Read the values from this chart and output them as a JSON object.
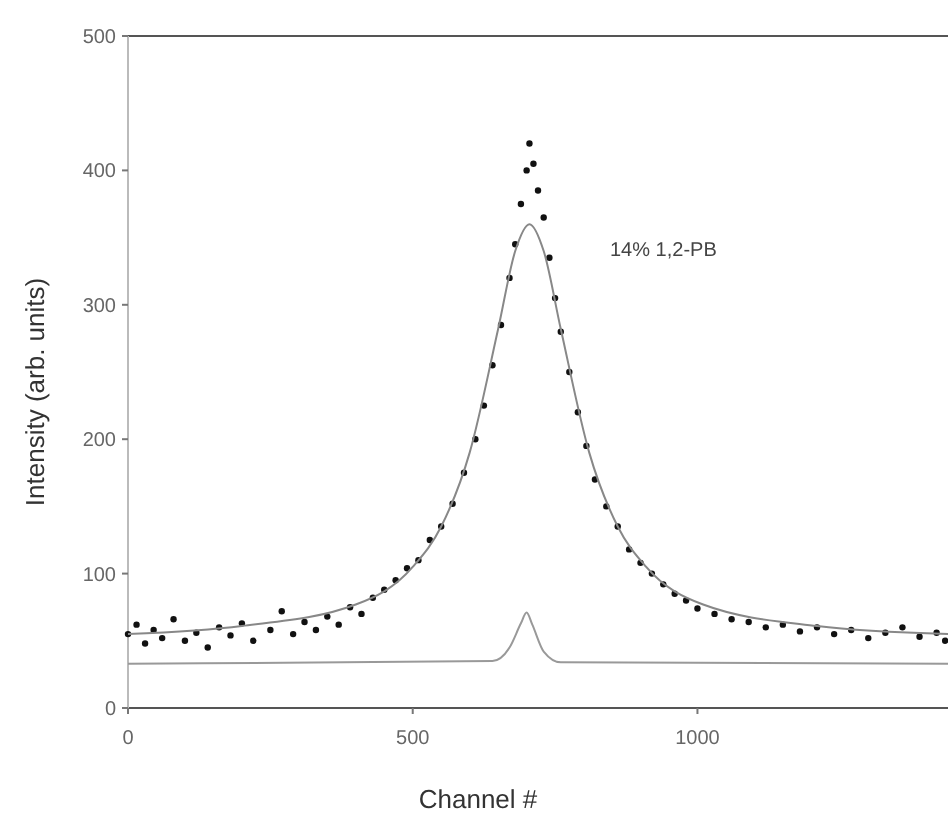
{
  "chart_data": {
    "type": "scatter",
    "xlabel": "Channel #",
    "ylabel": "Intensity (arb. units)",
    "annotations": [
      "14% 1,2-PB"
    ],
    "xlim": [
      0,
      1440
    ],
    "ylim": [
      0,
      500
    ],
    "xticks": [
      0,
      500,
      1000
    ],
    "yticks": [
      0,
      100,
      200,
      300,
      400,
      500
    ],
    "grid": false,
    "marker": "circle",
    "series": [
      {
        "color": "#111111",
        "x": [
          0,
          15,
          30,
          45,
          60,
          80,
          100,
          120,
          140,
          160,
          180,
          200,
          220,
          250,
          270,
          290,
          310,
          330,
          350,
          370,
          390,
          410,
          430,
          450,
          470,
          490,
          510,
          530,
          550,
          570,
          590,
          610,
          625,
          640,
          655,
          670,
          680,
          690,
          700,
          705,
          712,
          720,
          730,
          740,
          750,
          760,
          775,
          790,
          805,
          820,
          840,
          860,
          880,
          900,
          920,
          940,
          960,
          980,
          1000,
          1030,
          1060,
          1090,
          1120,
          1150,
          1180,
          1210,
          1240,
          1270,
          1300,
          1330,
          1360,
          1390,
          1420,
          1435
        ],
        "values": [
          55,
          62,
          48,
          58,
          52,
          66,
          50,
          56,
          45,
          60,
          54,
          63,
          50,
          58,
          72,
          55,
          64,
          58,
          68,
          62,
          75,
          70,
          82,
          88,
          95,
          104,
          110,
          125,
          135,
          152,
          175,
          200,
          225,
          255,
          285,
          320,
          345,
          375,
          400,
          420,
          405,
          385,
          365,
          335,
          305,
          280,
          250,
          220,
          195,
          170,
          150,
          135,
          118,
          108,
          100,
          92,
          85,
          80,
          74,
          70,
          66,
          64,
          60,
          62,
          57,
          60,
          55,
          58,
          52,
          56,
          60,
          53,
          56,
          50
        ]
      },
      {
        "type": "line",
        "color": "#888888",
        "marker": "none",
        "x": [
          0,
          200,
          400,
          500,
          550,
          600,
          650,
          680,
          705,
          730,
          760,
          810,
          860,
          910,
          1010,
          1210,
          1440
        ],
        "values": [
          55,
          61,
          77,
          105,
          135,
          190,
          282,
          340,
          360,
          340,
          282,
          190,
          135,
          105,
          77,
          61,
          55
        ]
      },
      {
        "type": "line",
        "color": "#999999",
        "marker": "none",
        "x": [
          0,
          640,
          670,
          690,
          700,
          710,
          730,
          760,
          1440
        ],
        "values": [
          33,
          35,
          45,
          63,
          71,
          62,
          42,
          34,
          33
        ]
      }
    ]
  }
}
